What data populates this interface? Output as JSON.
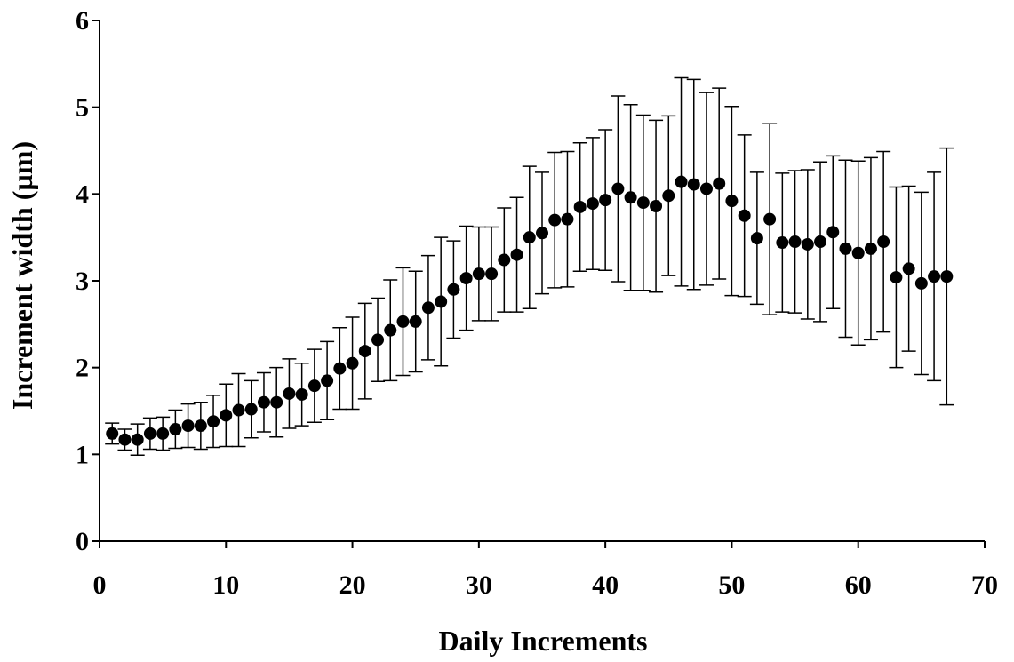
{
  "chart_data": {
    "type": "scatter",
    "xlabel": "Daily Increments",
    "ylabel": "Increment width (µm)",
    "xlim": [
      0,
      70
    ],
    "ylim": [
      0,
      6
    ],
    "xticks": [
      "0",
      "10",
      "20",
      "30",
      "40",
      "50",
      "60",
      "70"
    ],
    "yticks": [
      "0",
      "1",
      "2",
      "3",
      "4",
      "5",
      "6"
    ],
    "grid": false,
    "marker_color": "#000000",
    "series": [
      {
        "x": [
          1,
          2,
          3,
          4,
          5,
          6,
          7,
          8,
          9,
          10,
          11,
          12,
          13,
          14,
          15,
          16,
          17,
          18,
          19,
          20,
          21,
          22,
          23,
          24,
          25,
          26,
          27,
          28,
          29,
          30,
          31,
          32,
          33,
          34,
          35,
          36,
          37,
          38,
          39,
          40,
          41,
          42,
          43,
          44,
          45,
          46,
          47,
          48,
          49,
          50,
          51,
          52,
          53,
          54,
          55,
          56,
          57,
          58,
          59,
          60,
          61,
          62,
          63,
          64,
          65,
          66,
          67
        ],
        "y": [
          1.24,
          1.17,
          1.17,
          1.24,
          1.24,
          1.29,
          1.33,
          1.33,
          1.38,
          1.45,
          1.51,
          1.52,
          1.6,
          1.6,
          1.7,
          1.69,
          1.79,
          1.85,
          1.99,
          2.05,
          2.19,
          2.32,
          2.43,
          2.53,
          2.53,
          2.69,
          2.76,
          2.9,
          3.03,
          3.08,
          3.08,
          3.24,
          3.3,
          3.5,
          3.55,
          3.7,
          3.71,
          3.85,
          3.89,
          3.93,
          4.06,
          3.96,
          3.9,
          3.86,
          3.98,
          4.14,
          4.11,
          4.06,
          4.12,
          3.92,
          3.75,
          3.49,
          3.71,
          3.44,
          3.45,
          3.42,
          3.45,
          3.56,
          3.37,
          3.32,
          3.37,
          3.45,
          3.04,
          3.14,
          2.97,
          3.05,
          3.05
        ],
        "err": [
          0.12,
          0.12,
          0.18,
          0.18,
          0.19,
          0.22,
          0.25,
          0.27,
          0.3,
          0.36,
          0.42,
          0.33,
          0.34,
          0.4,
          0.4,
          0.36,
          0.42,
          0.45,
          0.47,
          0.53,
          0.55,
          0.48,
          0.58,
          0.62,
          0.58,
          0.6,
          0.74,
          0.56,
          0.6,
          0.54,
          0.54,
          0.6,
          0.66,
          0.82,
          0.7,
          0.78,
          0.78,
          0.74,
          0.76,
          0.81,
          1.07,
          1.07,
          1.01,
          0.99,
          0.92,
          1.2,
          1.21,
          1.11,
          1.1,
          1.09,
          0.93,
          0.76,
          1.1,
          0.8,
          0.82,
          0.86,
          0.92,
          0.88,
          1.02,
          1.06,
          1.05,
          1.04,
          1.04,
          0.95,
          1.05,
          1.2,
          1.48
        ]
      }
    ]
  }
}
